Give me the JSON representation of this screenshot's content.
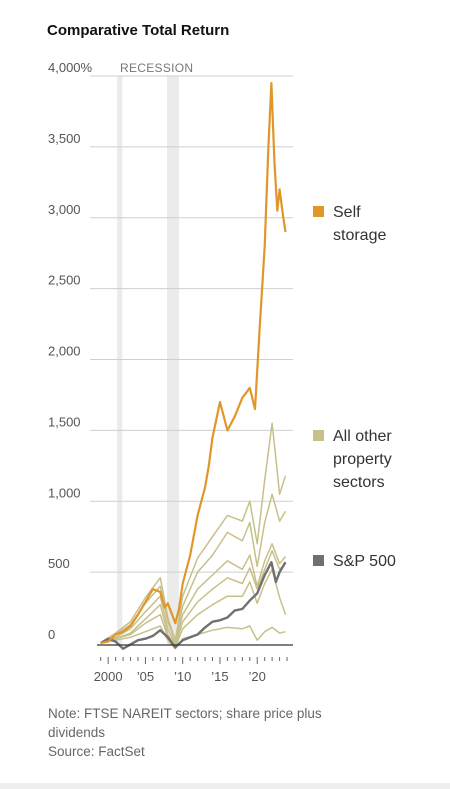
{
  "chart_data": {
    "type": "line",
    "title": "Comparative Total Return",
    "y_unit": "%",
    "ylim": [
      0,
      4100
    ],
    "xlim": [
      1998.5,
      2024.8
    ],
    "y_ticks": [
      {
        "value": 0,
        "label": "0"
      },
      {
        "value": 500,
        "label": "500"
      },
      {
        "value": 1000,
        "label": "1,000"
      },
      {
        "value": 1500,
        "label": "1,500"
      },
      {
        "value": 2000,
        "label": "2,000"
      },
      {
        "value": 2500,
        "label": "2,500"
      },
      {
        "value": 3000,
        "label": "3,000"
      },
      {
        "value": 3500,
        "label": "3,500"
      },
      {
        "value": 4000,
        "label": "4,000%"
      }
    ],
    "x_ticks": [
      {
        "value": 2000,
        "label": "2000"
      },
      {
        "value": 2005,
        "label": "’05"
      },
      {
        "value": 2010,
        "label": "’10"
      },
      {
        "value": 2015,
        "label": "’15"
      },
      {
        "value": 2020,
        "label": "’20"
      }
    ],
    "recession_label": "RECESSION",
    "recessions": [
      [
        2001.2,
        2001.9
      ],
      [
        2007.9,
        2009.5
      ]
    ],
    "grid": "horizontal",
    "legend_placement": "right",
    "series": [
      {
        "name": "Self storage",
        "color": "#e0962b",
        "width": 2.2,
        "points": [
          [
            1999,
            0
          ],
          [
            2000,
            10
          ],
          [
            2001,
            60
          ],
          [
            2002,
            80
          ],
          [
            2003,
            120
          ],
          [
            2004,
            200
          ],
          [
            2005,
            290
          ],
          [
            2006,
            380
          ],
          [
            2007,
            360
          ],
          [
            2007.6,
            250
          ],
          [
            2008,
            280
          ],
          [
            2009,
            140
          ],
          [
            2009.5,
            240
          ],
          [
            2010,
            420
          ],
          [
            2011,
            620
          ],
          [
            2012,
            900
          ],
          [
            2013,
            1100
          ],
          [
            2013.5,
            1250
          ],
          [
            2014,
            1450
          ],
          [
            2015,
            1700
          ],
          [
            2016,
            1500
          ],
          [
            2017,
            1600
          ],
          [
            2018,
            1730
          ],
          [
            2019,
            1800
          ],
          [
            2019.7,
            1650
          ],
          [
            2020.3,
            2200
          ],
          [
            2021,
            2800
          ],
          [
            2021.5,
            3500
          ],
          [
            2021.9,
            3950
          ],
          [
            2022.3,
            3400
          ],
          [
            2022.7,
            3050
          ],
          [
            2023,
            3200
          ],
          [
            2023.5,
            3000
          ],
          [
            2023.8,
            2900
          ]
        ]
      },
      {
        "name": "All other property sectors",
        "color": "#c8c08a",
        "width": 1.5,
        "points": [
          [
            1999,
            0
          ],
          [
            2001,
            70
          ],
          [
            2003,
            150
          ],
          [
            2005,
            320
          ],
          [
            2007,
            460
          ],
          [
            2008,
            180
          ],
          [
            2009,
            20
          ],
          [
            2010,
            330
          ],
          [
            2012,
            600
          ],
          [
            2014,
            750
          ],
          [
            2016,
            900
          ],
          [
            2018,
            860
          ],
          [
            2019,
            1000
          ],
          [
            2020,
            700
          ],
          [
            2021,
            1150
          ],
          [
            2022,
            1550
          ],
          [
            2022.5,
            1300
          ],
          [
            2023,
            1050
          ],
          [
            2023.8,
            1180
          ]
        ]
      },
      {
        "name": "",
        "color": "#c8c08a",
        "width": 1.5,
        "points": [
          [
            1999,
            0
          ],
          [
            2001,
            60
          ],
          [
            2003,
            130
          ],
          [
            2005,
            280
          ],
          [
            2007,
            400
          ],
          [
            2008,
            150
          ],
          [
            2009,
            10
          ],
          [
            2010,
            260
          ],
          [
            2012,
            500
          ],
          [
            2014,
            620
          ],
          [
            2016,
            780
          ],
          [
            2018,
            720
          ],
          [
            2019,
            850
          ],
          [
            2020,
            540
          ],
          [
            2021,
            850
          ],
          [
            2022,
            1050
          ],
          [
            2023,
            860
          ],
          [
            2023.8,
            930
          ]
        ]
      },
      {
        "name": "",
        "color": "#c8c08a",
        "width": 1.5,
        "points": [
          [
            1999,
            0
          ],
          [
            2001,
            40
          ],
          [
            2003,
            100
          ],
          [
            2005,
            220
          ],
          [
            2007,
            330
          ],
          [
            2008,
            100
          ],
          [
            2009,
            -10
          ],
          [
            2010,
            200
          ],
          [
            2012,
            380
          ],
          [
            2014,
            480
          ],
          [
            2016,
            580
          ],
          [
            2018,
            520
          ],
          [
            2019,
            620
          ],
          [
            2020,
            400
          ],
          [
            2021,
            580
          ],
          [
            2022,
            700
          ],
          [
            2023,
            560
          ],
          [
            2023.8,
            610
          ]
        ]
      },
      {
        "name": "",
        "color": "#c8c08a",
        "width": 1.5,
        "points": [
          [
            1999,
            0
          ],
          [
            2001,
            30
          ],
          [
            2003,
            70
          ],
          [
            2005,
            170
          ],
          [
            2007,
            270
          ],
          [
            2008,
            60
          ],
          [
            2009,
            -20
          ],
          [
            2010,
            150
          ],
          [
            2012,
            290
          ],
          [
            2014,
            380
          ],
          [
            2016,
            460
          ],
          [
            2018,
            420
          ],
          [
            2019,
            530
          ],
          [
            2020,
            380
          ],
          [
            2021,
            520
          ],
          [
            2022,
            650
          ],
          [
            2023,
            520
          ],
          [
            2023.8,
            560
          ]
        ]
      },
      {
        "name": "",
        "color": "#c8c08a",
        "width": 1.5,
        "points": [
          [
            1999,
            0
          ],
          [
            2001,
            30
          ],
          [
            2003,
            60
          ],
          [
            2005,
            140
          ],
          [
            2007,
            200
          ],
          [
            2008,
            40
          ],
          [
            2009,
            -30
          ],
          [
            2010,
            100
          ],
          [
            2012,
            200
          ],
          [
            2014,
            270
          ],
          [
            2016,
            330
          ],
          [
            2018,
            330
          ],
          [
            2019,
            430
          ],
          [
            2020,
            280
          ],
          [
            2021,
            420
          ],
          [
            2022,
            520
          ],
          [
            2023,
            320
          ],
          [
            2023.8,
            200
          ]
        ]
      },
      {
        "name": "",
        "color": "#c8c08a",
        "width": 1.5,
        "points": [
          [
            1999,
            0
          ],
          [
            2001,
            20
          ],
          [
            2003,
            40
          ],
          [
            2005,
            80
          ],
          [
            2007,
            120
          ],
          [
            2008,
            20
          ],
          [
            2009,
            -40
          ],
          [
            2010,
            30
          ],
          [
            2012,
            60
          ],
          [
            2014,
            90
          ],
          [
            2016,
            110
          ],
          [
            2018,
            100
          ],
          [
            2019,
            120
          ],
          [
            2020,
            20
          ],
          [
            2021,
            80
          ],
          [
            2022,
            110
          ],
          [
            2023,
            70
          ],
          [
            2023.8,
            80
          ]
        ]
      },
      {
        "name": "S&P 500",
        "color": "#707070",
        "width": 2.4,
        "points": [
          [
            1999,
            0
          ],
          [
            2000,
            30
          ],
          [
            2001,
            10
          ],
          [
            2002,
            -40
          ],
          [
            2003,
            -10
          ],
          [
            2004,
            20
          ],
          [
            2005,
            30
          ],
          [
            2006,
            50
          ],
          [
            2007,
            90
          ],
          [
            2008,
            40
          ],
          [
            2009,
            -30
          ],
          [
            2010,
            20
          ],
          [
            2011,
            40
          ],
          [
            2012,
            60
          ],
          [
            2013,
            110
          ],
          [
            2014,
            150
          ],
          [
            2015,
            160
          ],
          [
            2016,
            180
          ],
          [
            2017,
            230
          ],
          [
            2018,
            240
          ],
          [
            2019,
            300
          ],
          [
            2020,
            350
          ],
          [
            2021,
            480
          ],
          [
            2021.9,
            570
          ],
          [
            2022.5,
            430
          ],
          [
            2023,
            500
          ],
          [
            2023.8,
            570
          ]
        ]
      }
    ]
  },
  "legend": [
    {
      "lines": [
        "Self",
        "storage"
      ],
      "color": "#e0962b"
    },
    {
      "lines": [
        "All other",
        "property",
        "sectors"
      ],
      "color": "#c8c08a"
    },
    {
      "lines": [
        "S&P 500"
      ],
      "color": "#707070"
    }
  ],
  "notes": {
    "note_line1": "Note: FTSE NAREIT sectors; share price plus",
    "note_line2": "dividends",
    "source": "Source: FactSet"
  }
}
